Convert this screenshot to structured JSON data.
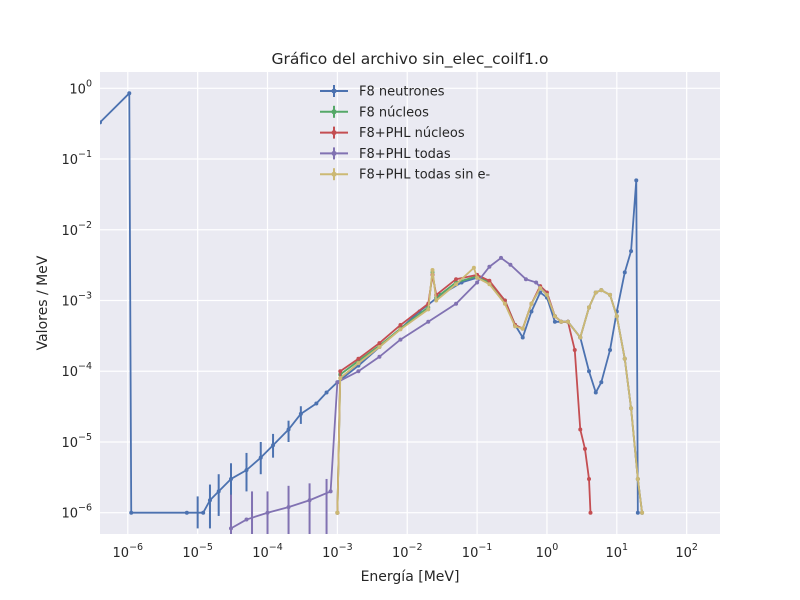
{
  "chart_data": {
    "type": "line",
    "title": "Gráfico del archivo sin_elec_coilf1.o",
    "xlabel": "Energía [MeV]",
    "ylabel": "Valores / MeV",
    "xscale": "log",
    "yscale": "log",
    "xlim": [
      4e-07,
      300
    ],
    "ylim": [
      5e-07,
      1.7
    ],
    "grid": true,
    "legend_position": "top-center",
    "x_ticks": [
      {
        "base": "10",
        "exp": "−6",
        "value": 1e-06
      },
      {
        "base": "10",
        "exp": "−5",
        "value": 1e-05
      },
      {
        "base": "10",
        "exp": "−4",
        "value": 0.0001
      },
      {
        "base": "10",
        "exp": "−3",
        "value": 0.001
      },
      {
        "base": "10",
        "exp": "−2",
        "value": 0.01
      },
      {
        "base": "10",
        "exp": "−1",
        "value": 0.1
      },
      {
        "base": "10",
        "exp": "0",
        "value": 1
      },
      {
        "base": "10",
        "exp": "1",
        "value": 10
      },
      {
        "base": "10",
        "exp": "2",
        "value": 100
      }
    ],
    "y_ticks": [
      {
        "base": "10",
        "exp": "0",
        "value": 1
      },
      {
        "base": "10",
        "exp": "−1",
        "value": 0.1
      },
      {
        "base": "10",
        "exp": "−2",
        "value": 0.01
      },
      {
        "base": "10",
        "exp": "−3",
        "value": 0.001
      },
      {
        "base": "10",
        "exp": "−4",
        "value": 0.0001
      },
      {
        "base": "10",
        "exp": "−5",
        "value": 1e-05
      },
      {
        "base": "10",
        "exp": "−6",
        "value": 1e-06
      }
    ],
    "series": [
      {
        "name": "F8 neutrones",
        "color": "#4c72b0",
        "points": [
          [
            4e-07,
            0.33
          ],
          [
            1.05e-06,
            0.85
          ],
          [
            1.12e-06,
            1e-06
          ],
          [
            7e-06,
            1e-06
          ],
          [
            1.2e-05,
            1e-06
          ],
          [
            1.5e-05,
            1.5e-06
          ],
          [
            2e-05,
            2e-06
          ],
          [
            3e-05,
            3e-06
          ],
          [
            5e-05,
            4e-06
          ],
          [
            8e-05,
            6e-06
          ],
          [
            0.00012,
            9e-06
          ],
          [
            0.0002,
            1.5e-05
          ],
          [
            0.0003,
            2.5e-05
          ],
          [
            0.0005,
            3.5e-05
          ],
          [
            0.0007,
            5e-05
          ],
          [
            0.001,
            7e-05
          ],
          [
            0.002,
            0.00012
          ],
          [
            0.004,
            0.00022
          ],
          [
            0.008,
            0.0004
          ],
          [
            0.015,
            0.0007
          ],
          [
            0.03,
            0.0012
          ],
          [
            0.06,
            0.0018
          ],
          [
            0.1,
            0.0021
          ],
          [
            0.15,
            0.0018
          ],
          [
            0.25,
            0.001
          ],
          [
            0.35,
            0.00045
          ],
          [
            0.45,
            0.0003
          ],
          [
            0.6,
            0.0007
          ],
          [
            0.8,
            0.0013
          ],
          [
            1,
            0.0011
          ],
          [
            1.3,
            0.0005
          ],
          [
            2,
            0.0005
          ],
          [
            3,
            0.0003
          ],
          [
            4,
            0.0001
          ],
          [
            5,
            5e-05
          ],
          [
            6,
            7e-05
          ],
          [
            8,
            0.0002
          ],
          [
            10,
            0.0007
          ],
          [
            13,
            0.0025
          ],
          [
            16,
            0.005
          ],
          [
            19,
            0.05
          ],
          [
            20,
            1e-06
          ]
        ],
        "error_bars": [
          [
            1e-05,
            6e-07,
            1.7e-06
          ],
          [
            1.5e-05,
            6e-07,
            2.5e-06
          ],
          [
            2e-05,
            9e-07,
            3.5e-06
          ],
          [
            3e-05,
            1.5e-06,
            5e-06
          ],
          [
            5e-05,
            2e-06,
            7e-06
          ],
          [
            8e-05,
            3.5e-06,
            1e-05
          ],
          [
            0.00012,
            6e-06,
            1.3e-05
          ],
          [
            0.0002,
            1e-05,
            2e-05
          ],
          [
            0.0003,
            1.8e-05,
            3.2e-05
          ]
        ]
      },
      {
        "name": "F8 núcleos",
        "color": "#55a868",
        "points": [
          [
            0.001,
            1e-06
          ],
          [
            0.0011,
            9e-05
          ],
          [
            0.002,
            0.00014
          ],
          [
            0.004,
            0.00023
          ],
          [
            0.008,
            0.0004
          ],
          [
            0.02,
            0.0008
          ],
          [
            0.023,
            0.0025
          ],
          [
            0.026,
            0.0011
          ],
          [
            0.05,
            0.0018
          ],
          [
            0.1,
            0.0022
          ],
          [
            0.15,
            0.0018
          ],
          [
            0.25,
            0.001
          ],
          [
            0.35,
            0.00045
          ],
          [
            0.45,
            0.0004
          ],
          [
            0.6,
            0.0009
          ],
          [
            0.8,
            0.0015
          ],
          [
            1,
            0.0012
          ],
          [
            1.3,
            0.0006
          ],
          [
            1.6,
            0.0005
          ],
          [
            2,
            0.0005
          ],
          [
            3,
            0.0003
          ],
          [
            4,
            0.0008
          ],
          [
            5,
            0.0013
          ],
          [
            6,
            0.0014
          ],
          [
            8,
            0.0012
          ],
          [
            10,
            0.0006
          ],
          [
            13,
            0.00015
          ],
          [
            16,
            3e-05
          ],
          [
            20,
            3e-06
          ],
          [
            23,
            1e-06
          ]
        ]
      },
      {
        "name": "F8+PHL núcleos",
        "color": "#c44e52",
        "points": [
          [
            0.001,
            1e-06
          ],
          [
            0.0011,
            0.0001
          ],
          [
            0.002,
            0.00015
          ],
          [
            0.004,
            0.00025
          ],
          [
            0.008,
            0.00045
          ],
          [
            0.02,
            0.0009
          ],
          [
            0.023,
            0.0023
          ],
          [
            0.026,
            0.0012
          ],
          [
            0.05,
            0.002
          ],
          [
            0.1,
            0.0023
          ],
          [
            0.15,
            0.0019
          ],
          [
            0.25,
            0.001
          ],
          [
            0.35,
            0.00045
          ],
          [
            0.45,
            0.0004
          ],
          [
            0.6,
            0.0009
          ],
          [
            0.8,
            0.0016
          ],
          [
            1,
            0.0013
          ],
          [
            1.3,
            0.0006
          ],
          [
            1.6,
            0.0005
          ],
          [
            2,
            0.0005
          ],
          [
            2.5,
            0.0002
          ],
          [
            3,
            1.5e-05
          ],
          [
            3.5,
            8e-06
          ],
          [
            4,
            3e-06
          ],
          [
            4.2,
            1e-06
          ]
        ]
      },
      {
        "name": "F8+PHL todas",
        "color": "#8172b2",
        "points": [
          [
            3e-05,
            6e-07
          ],
          [
            5e-05,
            8e-07
          ],
          [
            0.0001,
            1e-06
          ],
          [
            0.0002,
            1.2e-06
          ],
          [
            0.0004,
            1.5e-06
          ],
          [
            0.0008,
            2e-06
          ],
          [
            0.001,
            7e-05
          ],
          [
            0.002,
            0.0001
          ],
          [
            0.004,
            0.00016
          ],
          [
            0.008,
            0.00028
          ],
          [
            0.02,
            0.0005
          ],
          [
            0.05,
            0.0009
          ],
          [
            0.1,
            0.0018
          ],
          [
            0.15,
            0.003
          ],
          [
            0.22,
            0.004
          ],
          [
            0.3,
            0.0032
          ],
          [
            0.5,
            0.002
          ],
          [
            0.7,
            0.0018
          ],
          [
            1,
            0.0012
          ],
          [
            1.3,
            0.0006
          ],
          [
            1.6,
            0.0005
          ],
          [
            2,
            0.0005
          ],
          [
            3,
            0.0003
          ],
          [
            4,
            0.0008
          ],
          [
            5,
            0.0013
          ],
          [
            6,
            0.0014
          ],
          [
            8,
            0.0012
          ],
          [
            10,
            0.0006
          ],
          [
            13,
            0.00015
          ],
          [
            16,
            3e-05
          ],
          [
            20,
            3e-06
          ],
          [
            23,
            1e-06
          ]
        ],
        "error_bars": [
          [
            3e-05,
            5e-07,
            1.8e-06
          ],
          [
            6e-05,
            5e-07,
            2e-06
          ],
          [
            0.0001,
            5e-07,
            2e-06
          ],
          [
            0.0002,
            5e-07,
            2.4e-06
          ],
          [
            0.0004,
            5e-07,
            2.6e-06
          ],
          [
            0.0007,
            5e-07,
            3e-06
          ]
        ]
      },
      {
        "name": "F8+PHL todas sin e-",
        "color": "#ccb974",
        "points": [
          [
            0.001,
            1e-06
          ],
          [
            0.0011,
            8e-05
          ],
          [
            0.002,
            0.00013
          ],
          [
            0.004,
            0.00022
          ],
          [
            0.008,
            0.00039
          ],
          [
            0.02,
            0.00075
          ],
          [
            0.023,
            0.0027
          ],
          [
            0.026,
            0.001
          ],
          [
            0.05,
            0.0017
          ],
          [
            0.09,
            0.0029
          ],
          [
            0.1,
            0.0021
          ],
          [
            0.15,
            0.0017
          ],
          [
            0.25,
            0.0009
          ],
          [
            0.35,
            0.00043
          ],
          [
            0.45,
            0.0004
          ],
          [
            0.6,
            0.0009
          ],
          [
            0.8,
            0.0015
          ],
          [
            1,
            0.0012
          ],
          [
            1.3,
            0.0006
          ],
          [
            1.6,
            0.0005
          ],
          [
            2,
            0.0005
          ],
          [
            3,
            0.0003
          ],
          [
            4,
            0.0008
          ],
          [
            5,
            0.0013
          ],
          [
            6,
            0.0014
          ],
          [
            8,
            0.0012
          ],
          [
            10,
            0.0006
          ],
          [
            13,
            0.00015
          ],
          [
            16,
            3e-05
          ],
          [
            20,
            3e-06
          ],
          [
            23,
            1e-06
          ]
        ]
      }
    ]
  }
}
